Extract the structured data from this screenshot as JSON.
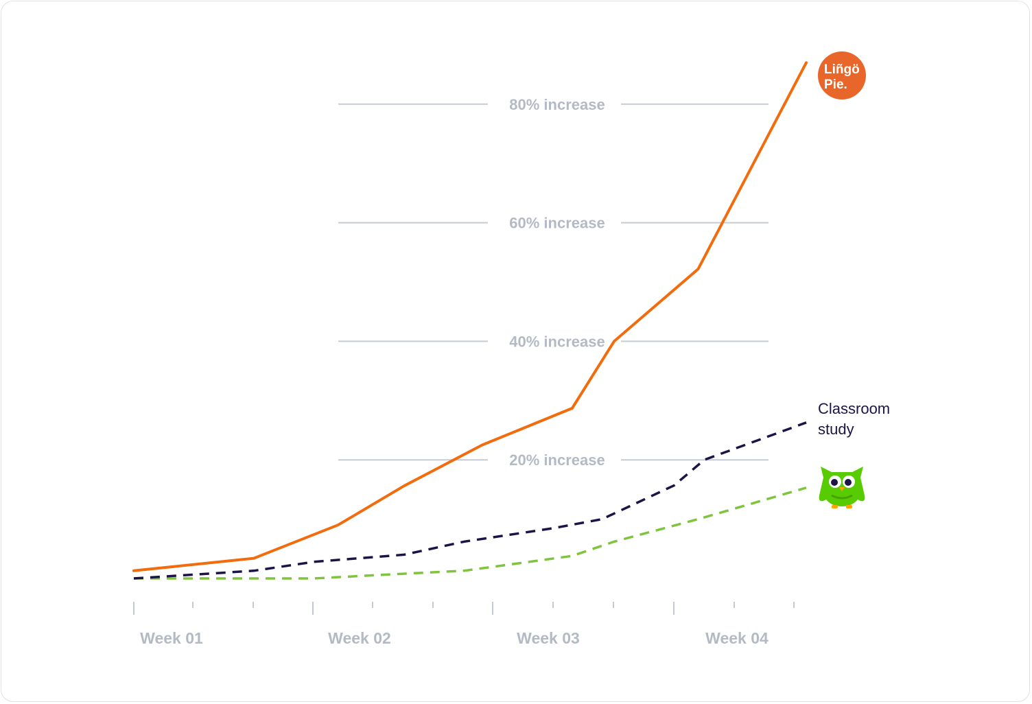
{
  "chart_data": {
    "type": "line",
    "y_unit": "% increase",
    "ylim": [
      0,
      90
    ],
    "y_gridlines": [
      20,
      40,
      60,
      80
    ],
    "y_tick_labels": [
      "20% increase",
      "40% increase",
      "60% increase",
      "80% increase"
    ],
    "x_tick_labels": [
      "Week 01",
      "Week 02",
      "Week 03",
      "Week 04"
    ],
    "x": [
      0,
      1,
      2,
      3,
      4,
      5,
      6,
      7,
      8,
      9,
      10,
      11
    ],
    "grid": true,
    "series": [
      {
        "name": "Lingo Pie",
        "values": [
          1.3,
          3.4,
          9,
          15.6,
          22.5,
          28.7,
          40,
          52.2,
          87
        ],
        "x": [
          0,
          2,
          3.4,
          4.5,
          5.8,
          7.3,
          8,
          9.4,
          11.2
        ],
        "color": "#f26c0d",
        "style": "solid",
        "logo_label": "Lingo Pie."
      },
      {
        "name": "Classroom study",
        "values": [
          0,
          1.3,
          2.8,
          4,
          6.2,
          8.5,
          10,
          15.7,
          20,
          26.3
        ],
        "x": [
          0,
          2,
          3,
          4.5,
          5.5,
          7,
          7.8,
          9,
          9.5,
          11.2
        ],
        "color": "#1c1446",
        "style": "dashed"
      },
      {
        "name": "Duolingo",
        "values": [
          0,
          0,
          0,
          0.8,
          1.3,
          3.8,
          6.2,
          10,
          15.3
        ],
        "x": [
          0,
          2,
          3,
          4.5,
          5.5,
          7.3,
          8,
          9.4,
          11.2
        ],
        "color": "#7fc43d",
        "style": "dashed",
        "icon": "owl-mascot-icon"
      }
    ]
  },
  "labels": {
    "classroom_line1": "Classroom",
    "classroom_line2": "study",
    "logo_line1": "Liñgö",
    "logo_line2": "Pie."
  },
  "colors": {
    "grid": "#c5cad2",
    "axis_text": "#b4bac4",
    "lingo_orange": "#f26c0d",
    "logo_circle": "#e8662a",
    "classroom": "#1c1446",
    "duolingo_green": "#7fc43d",
    "owl_green": "#58cc02"
  }
}
